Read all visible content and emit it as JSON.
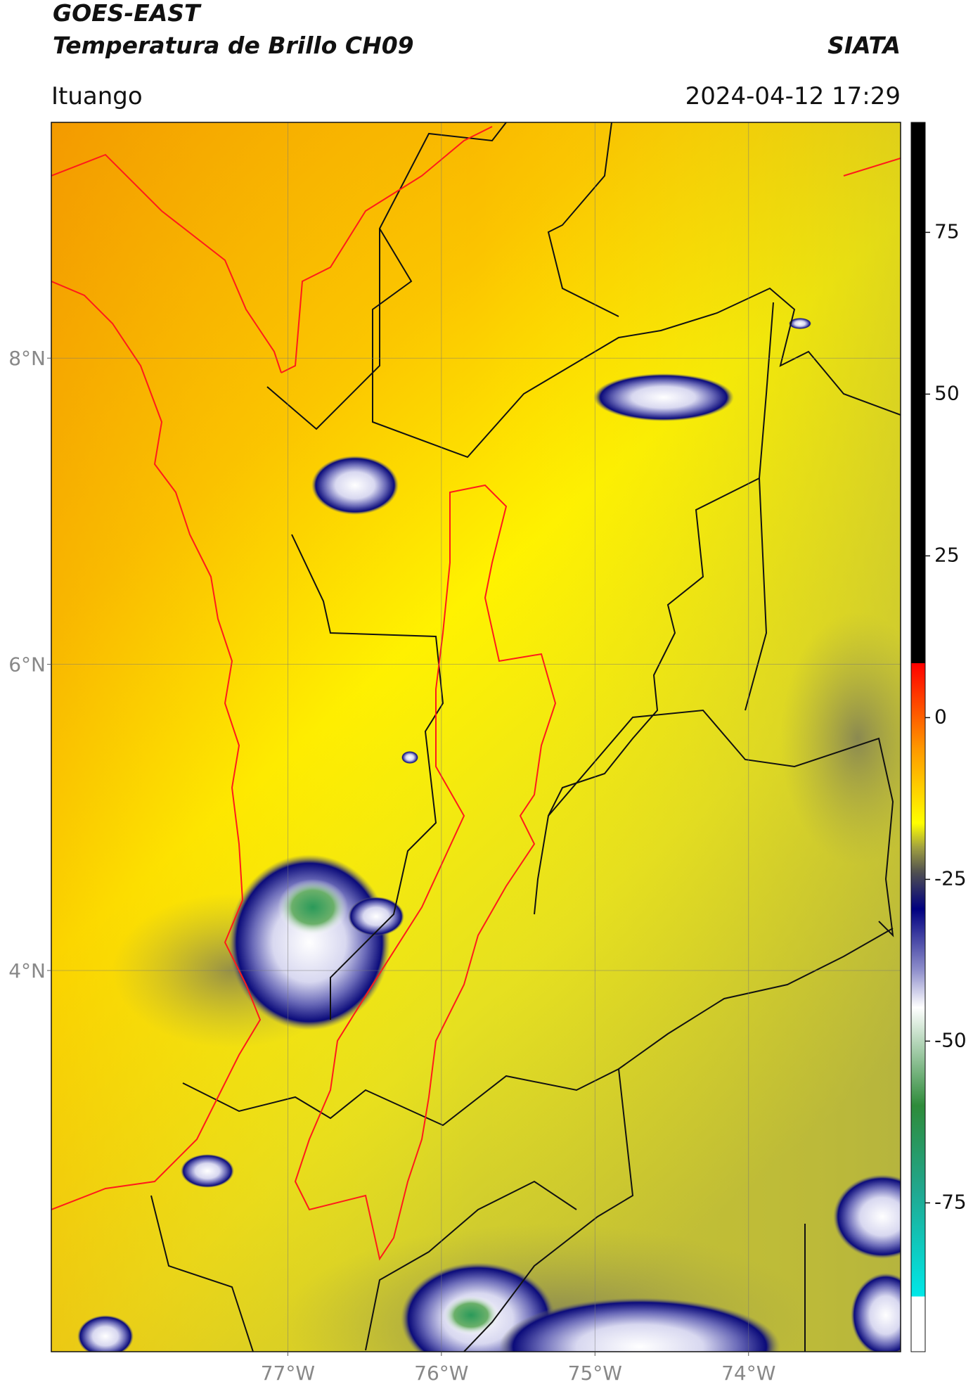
{
  "header": {
    "title": "GOES-EAST",
    "subtitle": "Temperatura de Brillo CH09",
    "source": "SIATA",
    "location": "Ituango",
    "datetime": "2024-04-12 17:29"
  },
  "map": {
    "xlim": [
      -78.54,
      -73.01
    ],
    "ylim": [
      1.51,
      9.54
    ],
    "xticks": [
      {
        "value": -77,
        "label": "77°W"
      },
      {
        "value": -76,
        "label": "76°W"
      },
      {
        "value": -75,
        "label": "75°W"
      },
      {
        "value": -74,
        "label": "74°W"
      }
    ],
    "yticks": [
      {
        "value": 8,
        "label": "8°N"
      },
      {
        "value": 6,
        "label": "6°N"
      },
      {
        "value": 4,
        "label": "4°N"
      }
    ],
    "grid": true,
    "colorbar": {
      "lim": [
        -98,
        92
      ],
      "ticks": [
        75,
        50,
        25,
        0,
        -25,
        -50,
        -75
      ]
    }
  }
}
